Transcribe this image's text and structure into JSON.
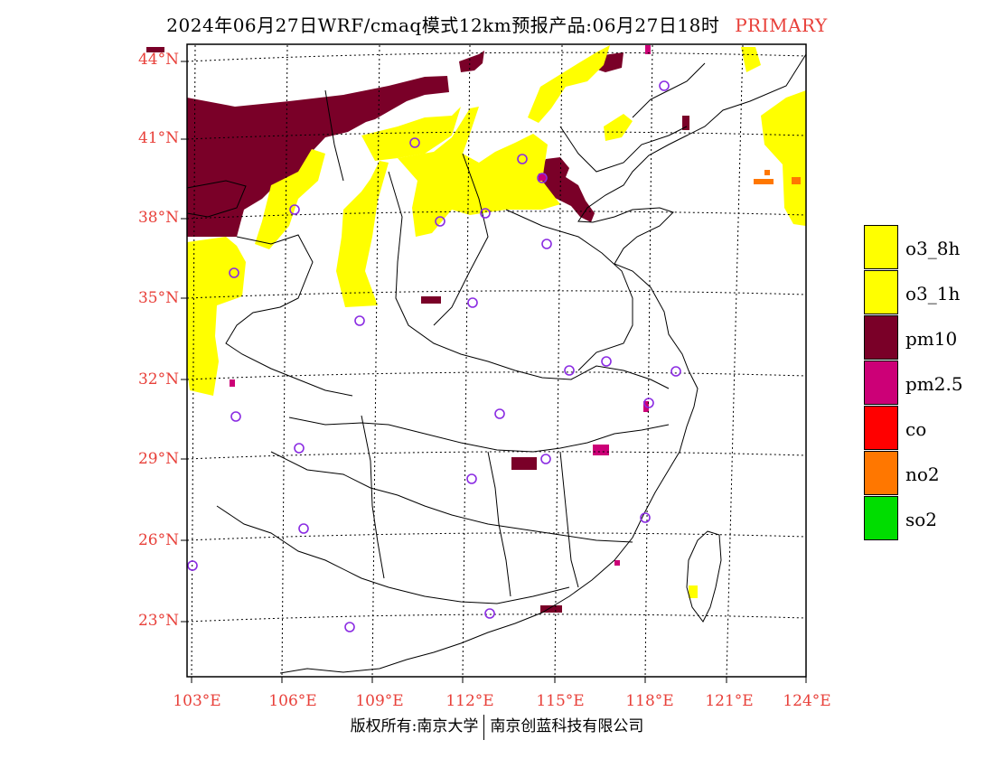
{
  "title": {
    "text": "2024年06月27日WRF/cmaq模式12km预报产品:06月27日18时",
    "tag": "PRIMARY"
  },
  "map": {
    "lat_labels": [
      "44°N",
      "41°N",
      "38°N",
      "35°N",
      "32°N",
      "29°N",
      "26°N",
      "23°N"
    ],
    "lon_labels": [
      "103°E",
      "106°E",
      "109°E",
      "112°E",
      "115°E",
      "118°E",
      "121°E",
      "124°E"
    ],
    "colors": {
      "label": "#e8403a",
      "frame": "#000000",
      "stations": "#8a2be2"
    }
  },
  "legend": [
    {
      "label": "o3_8h",
      "color": "#ffff00"
    },
    {
      "label": "o3_1h",
      "color": "#ffff00"
    },
    {
      "label": "pm10",
      "color": "#7a0028"
    },
    {
      "label": "pm2.5",
      "color": "#cc0077"
    },
    {
      "label": "co",
      "color": "#ff0000"
    },
    {
      "label": "no2",
      "color": "#ff7700"
    },
    {
      "label": "so2",
      "color": "#00dd00"
    }
  ],
  "footer": {
    "left": "版权所有:南京大学",
    "right": "南京创蓝科技有限公司"
  }
}
